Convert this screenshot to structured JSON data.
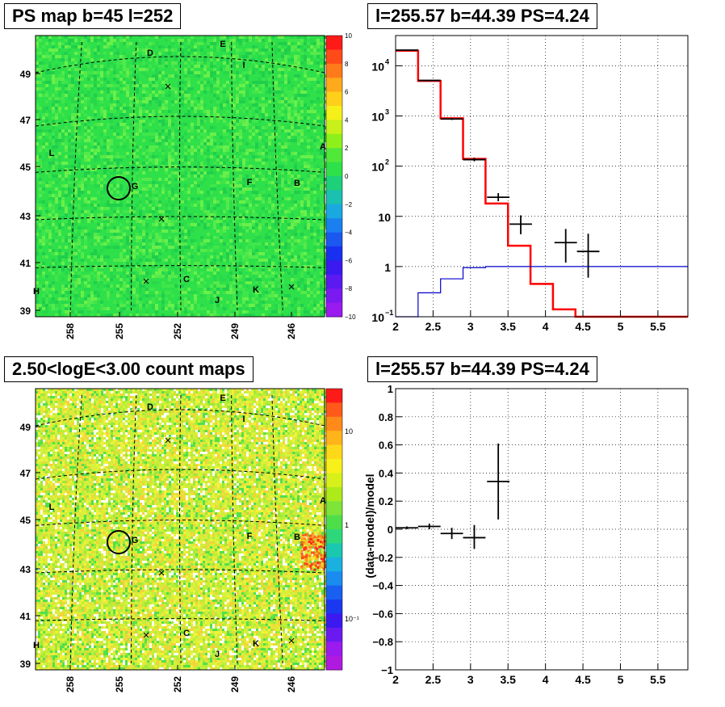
{
  "titles": {
    "ps_map": "PS map b=45 l=252",
    "spectrum": "l=255.57 b=44.39 PS=4.24",
    "count_map": "2.50<logE<3.00 count maps",
    "residual": "l=255.57 b=44.39 PS=4.24"
  },
  "map_axes": {
    "x_ticks": [
      "258",
      "255",
      "252",
      "249",
      "246"
    ],
    "y_ticks": [
      "49",
      "47",
      "45",
      "43",
      "41",
      "39"
    ],
    "source_labels": [
      "D",
      "E",
      "I",
      "L",
      "A",
      "G",
      "F",
      "B",
      "H",
      "C",
      "K",
      "J"
    ]
  },
  "colors": {
    "ps_map_background": "#2ee04a",
    "count_map_background": "#d9f23a",
    "data_black": "#000000",
    "model_red": "#ff0000",
    "background_blue": "#0000cc"
  },
  "chart_data": [
    {
      "type": "heatmap",
      "panel": "ps_map",
      "title": "PS map b=45 l=252",
      "xlabel": "",
      "ylabel": "",
      "x_ticks": [
        258,
        255,
        252,
        249,
        246
      ],
      "y_ticks": [
        49,
        47,
        45,
        43,
        41,
        39
      ],
      "colorbar": {
        "min": -10,
        "max": 10,
        "ticks": [
          "10",
          "8",
          "6",
          "4",
          "2",
          "0",
          "−2",
          "−4",
          "−6",
          "−8",
          "−10"
        ]
      },
      "sources": [
        {
          "label": "D"
        },
        {
          "label": "E"
        },
        {
          "label": "I"
        },
        {
          "label": "L"
        },
        {
          "label": "A"
        },
        {
          "label": "G"
        },
        {
          "label": "F"
        },
        {
          "label": "B"
        },
        {
          "label": "H"
        },
        {
          "label": "C"
        },
        {
          "label": "K"
        },
        {
          "label": "J"
        }
      ],
      "circle_center": {
        "l": 255.57,
        "b": 44.39
      }
    },
    {
      "type": "line",
      "panel": "spectrum",
      "title": "l=255.57 b=44.39 PS=4.24",
      "xlabel": "",
      "ylabel": "",
      "yscale": "log",
      "xlim": [
        2,
        5.9
      ],
      "ylim": [
        0.1,
        40000
      ],
      "x_ticks": [
        "2",
        "2.5",
        "3",
        "3.5",
        "4",
        "4.5",
        "5",
        "5.5"
      ],
      "y_ticks": [
        {
          "value": 10000,
          "base": "10",
          "exp": "4"
        },
        {
          "value": 1000,
          "base": "10",
          "exp": "3"
        },
        {
          "value": 100,
          "base": "10",
          "exp": "2"
        },
        {
          "value": 10,
          "base": "10",
          "exp": ""
        },
        {
          "value": 1,
          "base": "1",
          "exp": ""
        },
        {
          "value": 0.1,
          "base": "10",
          "exp": "−1"
        }
      ],
      "grid": true,
      "series": [
        {
          "style": "step",
          "color": "#ff0000",
          "edges": [
            2.0,
            2.3,
            2.6,
            2.9,
            3.2,
            3.5,
            3.8,
            4.1,
            4.4,
            5.9
          ],
          "values": [
            20000,
            5000,
            900,
            140,
            18,
            2.6,
            0.45,
            0.14,
            0.09
          ]
        },
        {
          "style": "step",
          "color": "#0000cc",
          "edges": [
            2.0,
            2.3,
            2.6,
            2.9,
            3.2,
            5.9
          ],
          "values": [
            0.09,
            0.3,
            0.57,
            0.95,
            1.0
          ]
        },
        {
          "style": "errorbar",
          "color": "#000000",
          "points": [
            {
              "x": 2.15,
              "xerr": 0.15,
              "y": 20500,
              "ylo": 20000,
              "yhi": 21000
            },
            {
              "x": 2.45,
              "xerr": 0.15,
              "y": 5100,
              "ylo": 4950,
              "yhi": 5250
            },
            {
              "x": 2.75,
              "xerr": 0.15,
              "y": 870,
              "ylo": 830,
              "yhi": 910
            },
            {
              "x": 3.05,
              "xerr": 0.15,
              "y": 135,
              "ylo": 125,
              "yhi": 147
            },
            {
              "x": 3.37,
              "xerr": 0.15,
              "y": 24,
              "ylo": 20,
              "yhi": 29
            },
            {
              "x": 3.67,
              "xerr": 0.15,
              "y": 7.0,
              "ylo": 4.4,
              "yhi": 10.5
            },
            {
              "x": 4.27,
              "xerr": 0.15,
              "y": 3.0,
              "ylo": 1.2,
              "yhi": 5.6
            },
            {
              "x": 4.57,
              "xerr": 0.15,
              "y": 2.0,
              "ylo": 0.6,
              "yhi": 4.5
            }
          ]
        }
      ]
    },
    {
      "type": "heatmap",
      "panel": "count_map",
      "title": "2.50<logE<3.00 count maps",
      "xlabel": "",
      "ylabel": "",
      "x_ticks": [
        258,
        255,
        252,
        249,
        246
      ],
      "y_ticks": [
        49,
        47,
        45,
        43,
        41,
        39
      ],
      "colorbar": {
        "scale": "log",
        "ticks": [
          "10",
          "1",
          "10⁻¹"
        ]
      },
      "circle_center": {
        "l": 255.57,
        "b": 44.39
      }
    },
    {
      "type": "scatter",
      "panel": "residual",
      "title": "l=255.57 b=44.39 PS=4.24",
      "xlabel": "",
      "ylabel": "(data-model)/model",
      "xlim": [
        2,
        5.9
      ],
      "ylim": [
        -1,
        1
      ],
      "x_ticks": [
        "2",
        "2.5",
        "3",
        "3.5",
        "4",
        "4.5",
        "5",
        "5.5"
      ],
      "y_ticks": [
        "1",
        "0.8",
        "0.6",
        "0.4",
        "0.2",
        "0",
        "−0.2",
        "−0.4",
        "−0.6",
        "−0.8",
        "−1"
      ],
      "grid": true,
      "points": [
        {
          "x": 2.15,
          "xerr": 0.15,
          "y": 0.01,
          "ylo": 0.0,
          "yhi": 0.02
        },
        {
          "x": 2.45,
          "xerr": 0.15,
          "y": 0.02,
          "ylo": 0.0,
          "yhi": 0.04
        },
        {
          "x": 2.75,
          "xerr": 0.15,
          "y": -0.03,
          "ylo": -0.07,
          "yhi": 0.01
        },
        {
          "x": 3.05,
          "xerr": 0.15,
          "y": -0.06,
          "ylo": -0.14,
          "yhi": 0.03
        },
        {
          "x": 3.37,
          "xerr": 0.15,
          "y": 0.34,
          "ylo": 0.07,
          "yhi": 0.61
        }
      ]
    }
  ]
}
